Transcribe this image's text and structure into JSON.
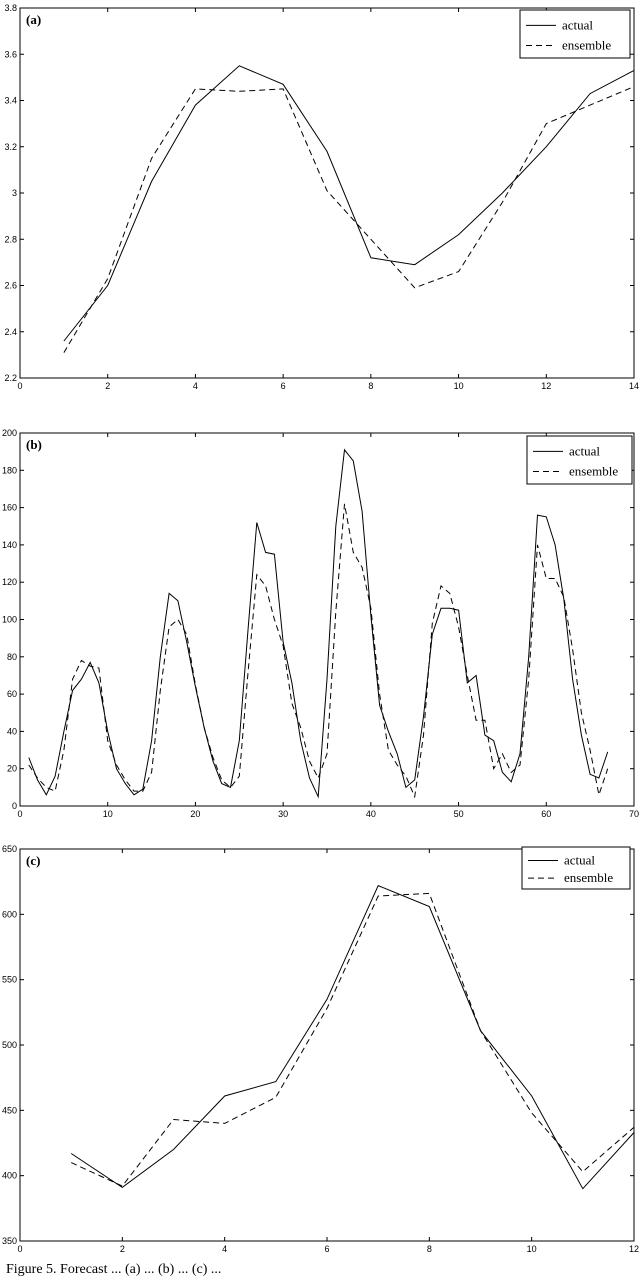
{
  "chart_data": [
    {
      "type": "line",
      "panel_label": "(a)",
      "xlim": [
        0,
        14
      ],
      "ylim": [
        2.2,
        3.8
      ],
      "xticks": [
        0,
        2,
        4,
        6,
        8,
        10,
        12,
        14
      ],
      "yticks": [
        2.2,
        2.4,
        2.6,
        2.8,
        3,
        3.2,
        3.4,
        3.6,
        3.8
      ],
      "xtick_labels": [
        "0",
        "2",
        "4",
        "6",
        "8",
        "10",
        "12",
        "14"
      ],
      "ytick_labels": [
        "2.2",
        "2.4",
        "2.6",
        "2.8",
        "3",
        "3.2",
        "3.4",
        "3.6",
        "3.8"
      ],
      "legend": {
        "position": "top-right",
        "entries": [
          "actual",
          "ensemble"
        ]
      },
      "series": [
        {
          "name": "actual",
          "style": "solid",
          "x": [
            1,
            2,
            3,
            4,
            5,
            6,
            7,
            8,
            9,
            10,
            11,
            12,
            13,
            14
          ],
          "y": [
            2.36,
            2.6,
            3.05,
            3.38,
            3.55,
            3.47,
            3.18,
            2.72,
            2.69,
            2.82,
            3.0,
            3.2,
            3.43,
            3.53
          ]
        },
        {
          "name": "ensemble",
          "style": "dashed",
          "x": [
            1,
            2,
            3,
            4,
            5,
            6,
            7,
            8,
            9,
            10,
            11,
            12,
            13,
            14
          ],
          "y": [
            2.31,
            2.63,
            3.15,
            3.45,
            3.44,
            3.45,
            3.01,
            2.8,
            2.59,
            2.66,
            2.96,
            3.3,
            3.38,
            3.46
          ]
        }
      ]
    },
    {
      "type": "line",
      "panel_label": "(b)",
      "xlim": [
        0,
        70
      ],
      "ylim": [
        0,
        200
      ],
      "xticks": [
        0,
        10,
        20,
        30,
        40,
        50,
        60,
        70
      ],
      "yticks": [
        0,
        20,
        40,
        60,
        80,
        100,
        120,
        140,
        160,
        180,
        200
      ],
      "xtick_labels": [
        "0",
        "10",
        "20",
        "30",
        "40",
        "50",
        "60",
        "70"
      ],
      "ytick_labels": [
        "0",
        "20",
        "40",
        "60",
        "80",
        "100",
        "120",
        "140",
        "160",
        "180",
        "200"
      ],
      "legend": {
        "position": "top-right",
        "entries": [
          "actual",
          "ensemble"
        ]
      },
      "series": [
        {
          "name": "actual",
          "style": "solid",
          "x": [
            1,
            2,
            3,
            4,
            5,
            6,
            7,
            8,
            9,
            10,
            11,
            12,
            13,
            14,
            15,
            16,
            17,
            18,
            19,
            20,
            21,
            22,
            23,
            24,
            25,
            26,
            27,
            28,
            29,
            30,
            31,
            32,
            33,
            34,
            35,
            36,
            37,
            38,
            39,
            40,
            41,
            42,
            43,
            44,
            45,
            46,
            47,
            48,
            49,
            50,
            51,
            52,
            53,
            54,
            55,
            56,
            57,
            58,
            59,
            60,
            61,
            62,
            63,
            64,
            65,
            66,
            67
          ],
          "y": [
            26,
            14,
            6,
            16,
            40,
            62,
            68,
            77,
            66,
            40,
            20,
            12,
            6,
            9,
            35,
            80,
            114,
            110,
            88,
            64,
            42,
            24,
            12,
            10,
            35,
            95,
            152,
            136,
            135,
            88,
            66,
            35,
            15,
            5,
            68,
            150,
            191,
            185,
            158,
            102,
            54,
            40,
            28,
            10,
            14,
            48,
            92,
            106,
            106,
            105,
            66,
            70,
            38,
            35,
            18,
            13,
            28,
            80,
            156,
            155,
            140,
            111,
            68,
            38,
            17,
            15,
            29
          ]
        },
        {
          "name": "ensemble",
          "style": "dashed",
          "x": [
            1,
            2,
            3,
            4,
            5,
            6,
            7,
            8,
            9,
            10,
            11,
            12,
            13,
            14,
            15,
            16,
            17,
            18,
            19,
            20,
            21,
            22,
            23,
            24,
            25,
            26,
            27,
            28,
            29,
            30,
            31,
            32,
            33,
            34,
            35,
            36,
            37,
            38,
            39,
            40,
            41,
            42,
            43,
            44,
            45,
            46,
            47,
            48,
            49,
            50,
            51,
            52,
            53,
            54,
            55,
            56,
            57,
            58,
            59,
            60,
            61,
            62,
            63,
            64,
            65,
            66,
            67
          ],
          "y": [
            22,
            15,
            10,
            8,
            30,
            68,
            78,
            75,
            74,
            35,
            22,
            14,
            8,
            8,
            18,
            62,
            96,
            100,
            92,
            65,
            42,
            26,
            14,
            10,
            16,
            72,
            124,
            118,
            100,
            86,
            55,
            42,
            24,
            15,
            28,
            104,
            162,
            136,
            128,
            106,
            60,
            30,
            22,
            16,
            5,
            38,
            98,
            118,
            114,
            96,
            70,
            46,
            46,
            20,
            28,
            18,
            22,
            68,
            140,
            122,
            122,
            112,
            84,
            50,
            30,
            6,
            20
          ]
        }
      ]
    },
    {
      "type": "line",
      "panel_label": "(c)",
      "xlim": [
        0,
        12
      ],
      "ylim": [
        350,
        650
      ],
      "xticks": [
        0,
        2,
        4,
        6,
        8,
        10,
        12
      ],
      "yticks": [
        350,
        400,
        450,
        500,
        550,
        600,
        650
      ],
      "xtick_labels": [
        "0",
        "2",
        "4",
        "6",
        "8",
        "10",
        "12"
      ],
      "ytick_labels": [
        "350",
        "400",
        "450",
        "500",
        "550",
        "600",
        "650"
      ],
      "legend": {
        "position": "top-right",
        "entries": [
          "actual",
          "ensemble"
        ]
      },
      "series": [
        {
          "name": "actual",
          "style": "solid",
          "x": [
            1,
            2,
            3,
            4,
            5,
            6,
            7,
            8,
            9,
            10,
            11,
            12
          ],
          "y": [
            417,
            391,
            420,
            461,
            472,
            535,
            622,
            606,
            511,
            461,
            390,
            433
          ]
        },
        {
          "name": "ensemble",
          "style": "dashed",
          "x": [
            1,
            2,
            3,
            4,
            5,
            6,
            7,
            8,
            9,
            10,
            11,
            12
          ],
          "y": [
            410,
            392,
            443,
            440,
            460,
            528,
            614,
            616,
            511,
            448,
            403,
            437
          ]
        }
      ]
    }
  ],
  "caption": "Figure 5.    Forecast ... (a) ... (b) ... (c) ..."
}
